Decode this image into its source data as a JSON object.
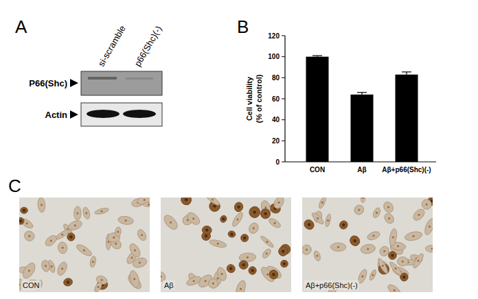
{
  "panels": {
    "a": "A",
    "b": "B",
    "c": "C"
  },
  "blot": {
    "lanes": [
      "si-scramble",
      "p66(Shc)(-)"
    ],
    "rows": [
      "P66(Shc)",
      "Actin"
    ]
  },
  "chart_data": {
    "type": "bar",
    "ylabel": [
      "Cell viability",
      "(% of control)"
    ],
    "categories": [
      "CON",
      "Aβ",
      "Aβ+p66(Shc)(-)"
    ],
    "values": [
      100,
      64,
      83
    ],
    "errors": [
      1,
      2,
      2.5
    ],
    "color": "#000000",
    "ylim": [
      0,
      120
    ],
    "yticks": [
      0,
      20,
      40,
      60,
      80,
      100,
      120
    ],
    "grid": false
  },
  "micrographs": [
    "CON",
    "Aβ",
    "Aβ+p66(Shc)(-)"
  ]
}
